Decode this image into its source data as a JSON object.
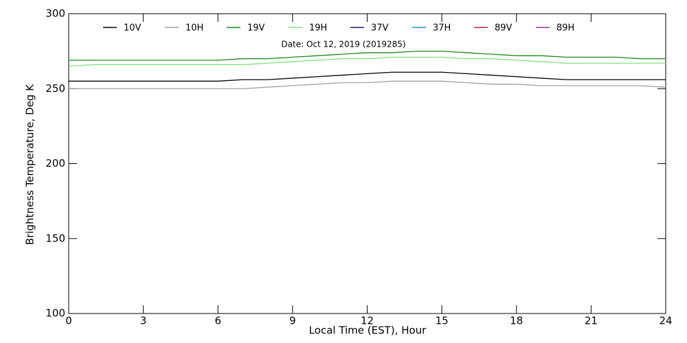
{
  "chart_data": {
    "type": "line",
    "subtitle": "Date: Oct 12, 2019 (2019285)",
    "xlabel": "Local Time (EST), Hour",
    "ylabel": "Brightness Temperature, Deg K",
    "x": [
      0,
      1,
      2,
      3,
      4,
      5,
      6,
      7,
      8,
      9,
      10,
      11,
      12,
      13,
      14,
      15,
      16,
      17,
      18,
      19,
      20,
      21,
      22,
      23,
      24
    ],
    "series": [
      {
        "name": "10V",
        "color": "#000000",
        "values": [
          255,
          255,
          255,
          255,
          255,
          255,
          255,
          256,
          256,
          257,
          258,
          259,
          260,
          261,
          261,
          261,
          260,
          259,
          258,
          257,
          256,
          256,
          256,
          256,
          256
        ]
      },
      {
        "name": "10H",
        "color": "#a0a0a0",
        "values": [
          250,
          250,
          250,
          250,
          250,
          250,
          250,
          250,
          251,
          252,
          253,
          254,
          254,
          255,
          255,
          255,
          254,
          253,
          253,
          252,
          252,
          252,
          252,
          252,
          251
        ]
      },
      {
        "name": "19V",
        "color": "#1a8a1a",
        "values": [
          269,
          269,
          269,
          269,
          269,
          269,
          269,
          270,
          270,
          271,
          272,
          273,
          274,
          274,
          275,
          275,
          274,
          273,
          272,
          272,
          271,
          271,
          271,
          270,
          270
        ]
      },
      {
        "name": "19H",
        "color": "#80e080",
        "values": [
          265,
          266,
          266,
          266,
          266,
          266,
          266,
          266,
          267,
          268,
          269,
          270,
          270,
          271,
          271,
          271,
          270,
          270,
          269,
          268,
          267,
          267,
          267,
          267,
          267
        ]
      },
      {
        "name": "37V",
        "color": "#1a1a6e",
        "values": [
          null,
          null,
          null,
          null,
          null,
          null,
          null,
          null,
          null,
          null,
          null,
          null,
          null,
          null,
          null,
          null,
          null,
          null,
          null,
          null,
          null,
          null,
          null,
          null,
          null
        ]
      },
      {
        "name": "37H",
        "color": "#2090c0",
        "values": [
          null,
          null,
          null,
          null,
          null,
          null,
          null,
          null,
          null,
          null,
          null,
          null,
          null,
          null,
          null,
          null,
          null,
          null,
          null,
          null,
          null,
          null,
          null,
          null,
          null
        ]
      },
      {
        "name": "89V",
        "color": "#b02040",
        "values": [
          null,
          null,
          null,
          null,
          null,
          null,
          null,
          null,
          null,
          null,
          null,
          null,
          null,
          null,
          null,
          null,
          null,
          null,
          null,
          null,
          null,
          null,
          null,
          null,
          null
        ]
      },
      {
        "name": "89H",
        "color": "#9030a0",
        "values": [
          null,
          null,
          null,
          null,
          null,
          null,
          null,
          null,
          null,
          null,
          null,
          null,
          null,
          null,
          null,
          null,
          null,
          null,
          null,
          null,
          null,
          null,
          null,
          null,
          null
        ]
      }
    ],
    "xlim": [
      0,
      24
    ],
    "xticks": [
      0,
      3,
      6,
      9,
      12,
      15,
      18,
      21,
      24
    ],
    "ylim": [
      100,
      300
    ],
    "yticks": [
      100,
      150,
      200,
      250,
      300
    ]
  }
}
